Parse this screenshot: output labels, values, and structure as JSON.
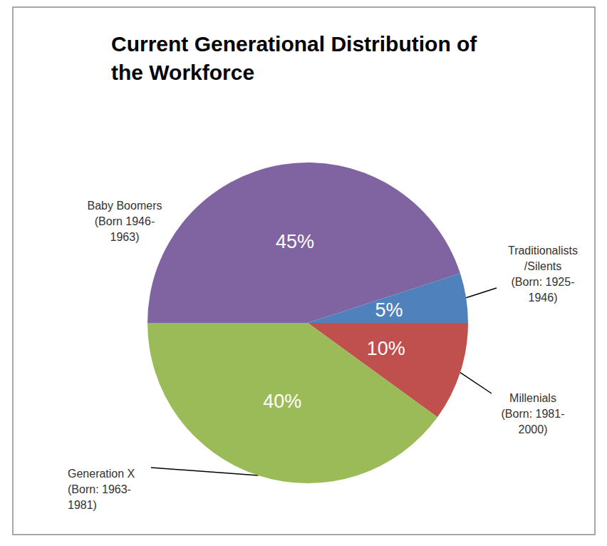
{
  "chart_data": {
    "type": "pie",
    "title": "Current Generational Distribution of the Workforce",
    "categories": [
      "Baby Boomers\n(Born 1946-\n1963)",
      "Traditionalists\n/Silents\n(Born: 1925-\n1946)",
      "Millenials\n(Born: 1981-\n2000)",
      "Generation X\n(Born: 1963-\n1981)"
    ],
    "values": [
      45,
      5,
      10,
      40
    ],
    "value_labels": [
      "45%",
      "5%",
      "10%",
      "40%"
    ],
    "colors": [
      "#8064a2",
      "#4f81bd",
      "#c0504d",
      "#9bbb59"
    ],
    "data_labels": true
  }
}
